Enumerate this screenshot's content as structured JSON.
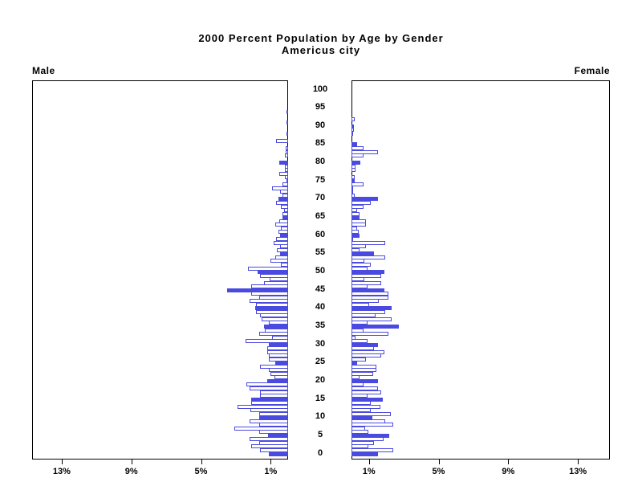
{
  "title": {
    "line1": "2000 Percent Population by Age by Gender",
    "line2": "Americus city"
  },
  "panels": {
    "male_label": "Male",
    "female_label": "Female"
  },
  "axis": {
    "age_labels": [
      "0",
      "5",
      "10",
      "15",
      "20",
      "25",
      "30",
      "35",
      "40",
      "45",
      "50",
      "55",
      "60",
      "65",
      "70",
      "75",
      "80",
      "85",
      "90",
      "95",
      "100"
    ],
    "pct_tick_values": [
      1,
      5,
      9,
      13
    ],
    "pct_tick_labels": [
      "1%",
      "5%",
      "9%",
      "13%"
    ]
  },
  "colors": {
    "bar_blue": "#4a4ae0",
    "bar_open_fill": "#ffffff",
    "axis_line": "#000000"
  },
  "chart_data": {
    "type": "bar",
    "subtype": "population-pyramid",
    "title": "2000 Percent Population by Age by Gender",
    "subtitle": "Americus city",
    "unit": "percent of population",
    "age_range": [
      0,
      100
    ],
    "age_step": 1,
    "xlim_percent": [
      0,
      14.7
    ],
    "x_ticks_percent": [
      1,
      5,
      9,
      13
    ],
    "highlight_rule": "bars for ages divisible by 5 are solid blue; all other ages are white with blue outline",
    "legend": "none",
    "series": [
      {
        "name": "Male",
        "side": "left",
        "values_by_age": [
          1.1,
          1.6,
          2.1,
          1.65,
          2.2,
          1.15,
          1.65,
          3.1,
          1.65,
          2.2,
          1.65,
          1.65,
          2.15,
          2.9,
          2.1,
          2.1,
          1.6,
          1.6,
          2.2,
          2.4,
          1.2,
          0.8,
          1.0,
          1.1,
          1.6,
          0.75,
          1.1,
          1.1,
          1.2,
          1.2,
          1.1,
          2.45,
          0.9,
          1.65,
          1.35,
          1.4,
          1.1,
          1.5,
          1.6,
          1.85,
          1.9,
          1.85,
          2.2,
          1.65,
          2.1,
          3.5,
          2.1,
          1.4,
          1.05,
          1.6,
          1.75,
          2.3,
          0.4,
          1.0,
          0.75,
          0.45,
          0.65,
          0.45,
          0.85,
          0.7,
          0.45,
          0.55,
          0.4,
          0.75,
          0.5,
          0.3,
          0.3,
          0.25,
          0.4,
          0.7,
          0.55,
          0.3,
          0.45,
          0.9,
          0.3,
          0.1,
          0.2,
          0.5,
          0.2,
          0.2,
          0.5,
          0,
          0.2,
          0.15,
          0.15,
          0,
          0.7,
          0,
          0.1,
          0,
          0,
          0.1,
          0,
          0,
          0.1,
          0,
          0,
          0,
          0,
          0,
          0
        ]
      },
      {
        "name": "Female",
        "side": "right",
        "values_by_age": [
          1.5,
          2.4,
          0.95,
          1.3,
          1.85,
          2.15,
          0.95,
          0.8,
          2.4,
          1.95,
          1.2,
          2.25,
          1.1,
          1.65,
          1.1,
          1.8,
          0.9,
          1.7,
          1.5,
          0.7,
          1.5,
          0.45,
          1.25,
          1.45,
          1.45,
          0.3,
          0.85,
          1.7,
          1.9,
          1.3,
          1.5,
          0.9,
          0.25,
          2.1,
          0.7,
          2.7,
          0.9,
          2.3,
          1.4,
          1.95,
          2.3,
          1.0,
          1.55,
          2.1,
          2.1,
          1.9,
          0.9,
          1.7,
          0.75,
          1.7,
          1.9,
          0.9,
          1.1,
          0.75,
          1.95,
          1.3,
          0.45,
          0.85,
          1.95,
          0.1,
          0.45,
          0.4,
          0.3,
          0.85,
          0.85,
          0.45,
          0.45,
          0.3,
          0.7,
          1.1,
          1.5,
          0.2,
          0.1,
          0.1,
          0.7,
          0.2,
          0.2,
          0,
          0.25,
          0.25,
          0.5,
          0,
          0.7,
          1.5,
          0.7,
          0.3,
          0,
          0,
          0.1,
          0.15,
          0.15,
          0,
          0.2,
          0,
          0,
          0,
          0,
          0,
          0,
          0,
          0,
          0
        ]
      }
    ]
  }
}
